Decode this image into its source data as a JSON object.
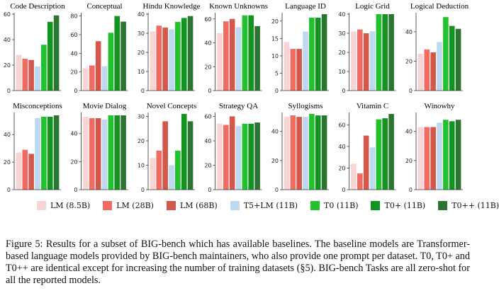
{
  "chart_data": {
    "type": "bar",
    "legend_position": "bottom",
    "grid": false,
    "models": [
      "LM (8.5B)",
      "LM (28B)",
      "LM (68B)",
      "T5+LM (11B)",
      "T0 (11B)",
      "T0+ (11B)",
      "T0++ (11B)"
    ],
    "colors": [
      "#f9d4d4",
      "#f16b62",
      "#d4574c",
      "#bcd9ef",
      "#21c22e",
      "#13931f",
      "#2a7530"
    ],
    "subplots": [
      {
        "title": "Code Description",
        "yticks": [
          0,
          20,
          40,
          60
        ],
        "ylim": [
          0,
          60
        ],
        "values": [
          28,
          25,
          24,
          19,
          36,
          54,
          59
        ]
      },
      {
        "title": "Conceptual",
        "yticks": [
          0,
          20,
          40,
          60,
          80
        ],
        "ylim": [
          0,
          82
        ],
        "values": [
          24,
          27,
          53,
          26,
          62,
          80,
          74
        ]
      },
      {
        "title": "Hindu Knowledge",
        "yticks": [
          0,
          10,
          20,
          30,
          40
        ],
        "ylim": [
          0,
          40
        ],
        "values": [
          31,
          34,
          33,
          32,
          36,
          38,
          39
        ]
      },
      {
        "title": "Known Unknowns",
        "yticks": [
          0,
          20,
          40,
          60
        ],
        "ylim": [
          0,
          64
        ],
        "values": [
          48,
          58,
          60,
          53,
          63,
          63,
          54
        ]
      },
      {
        "title": "Language ID",
        "yticks": [
          0,
          5,
          10,
          15,
          20
        ],
        "ylim": [
          0,
          22
        ],
        "values": [
          14,
          12,
          12,
          17,
          21,
          21,
          22
        ]
      },
      {
        "title": "Logic Grid",
        "yticks": [
          0,
          10,
          20,
          30,
          40
        ],
        "ylim": [
          0,
          40
        ],
        "values": [
          31,
          32,
          30,
          31,
          40,
          40,
          40
        ]
      },
      {
        "title": "Logical Deduction",
        "yticks": [
          0,
          20,
          40
        ],
        "ylim": [
          0,
          52
        ],
        "values": [
          25,
          28,
          26,
          33,
          50,
          44,
          42
        ]
      },
      {
        "title": "Misconceptions",
        "yticks": [
          0,
          20,
          40
        ],
        "ylim": [
          0,
          55
        ],
        "values": [
          27,
          29,
          26,
          52,
          53,
          53,
          54
        ]
      },
      {
        "title": "Movie Dialog",
        "yticks": [
          0,
          20,
          40
        ],
        "ylim": [
          0,
          54
        ],
        "values": [
          52,
          51,
          51,
          50,
          53,
          53,
          53
        ]
      },
      {
        "title": "Novel Concepts",
        "yticks": [
          0,
          10,
          20,
          30
        ],
        "ylim": [
          0,
          31
        ],
        "values": [
          13,
          16,
          28,
          10,
          16,
          31,
          28
        ]
      },
      {
        "title": "Strategy QA",
        "yticks": [
          0,
          20,
          40,
          60
        ],
        "ylim": [
          0,
          62
        ],
        "values": [
          54,
          53,
          60,
          52,
          54,
          54,
          55
        ]
      },
      {
        "title": "Syllogisms",
        "yticks": [
          0,
          20,
          40
        ],
        "ylim": [
          0,
          52
        ],
        "values": [
          50,
          51,
          50,
          50,
          52,
          51,
          51
        ]
      },
      {
        "title": "Vitamin C",
        "yticks": [
          0,
          20,
          40,
          60
        ],
        "ylim": [
          0,
          70
        ],
        "values": [
          24,
          15,
          50,
          39,
          65,
          66,
          70
        ]
      },
      {
        "title": "Winowhy",
        "yticks": [
          0,
          20,
          40
        ],
        "ylim": [
          0,
          52
        ],
        "values": [
          43,
          43,
          43,
          46,
          48,
          47,
          48
        ]
      }
    ]
  },
  "caption": "Figure 5: Results for a subset of BIG-bench which has available baselines. The baseline models are Transformer-based language models provided by BIG-bench maintainers, who also provide one prompt per dataset. T0, T0+ and T0++ are identical except for increasing the number of training datasets (§5). BIG-bench Tasks are all zero-shot for all the reported models."
}
